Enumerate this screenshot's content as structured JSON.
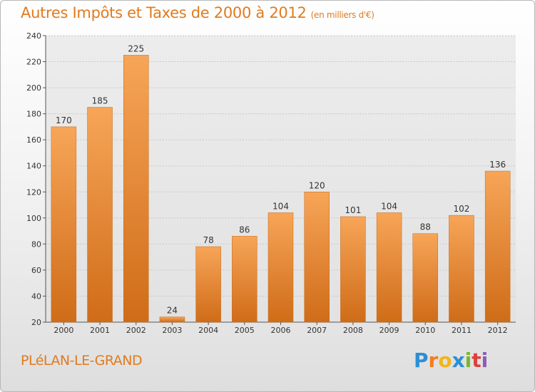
{
  "title": "Autres Impôts et Taxes de 2000 à 2012",
  "unit": "(en milliers d'€)",
  "commune": "PLéLAN-LE-GRAND",
  "logo": {
    "letters": [
      "P",
      "r",
      "o",
      "x",
      "i",
      "t",
      "i"
    ],
    "colors": [
      "#2a8fd6",
      "#f07f1e",
      "#f2b51b",
      "#2a8fd6",
      "#78b82a",
      "#e0403a",
      "#8e5bb8"
    ]
  },
  "chart_data": {
    "type": "bar",
    "categories": [
      "2000",
      "2001",
      "2002",
      "2003",
      "2004",
      "2005",
      "2006",
      "2007",
      "2008",
      "2009",
      "2010",
      "2011",
      "2012"
    ],
    "values": [
      170,
      185,
      225,
      24,
      78,
      86,
      104,
      120,
      101,
      104,
      88,
      102,
      136
    ],
    "data_labels": [
      "170",
      "185",
      "225",
      "24",
      "78",
      "86",
      "104",
      "120",
      "101",
      "104",
      "88",
      "102",
      "136"
    ],
    "title": "Autres Impôts et Taxes de 2000 à 2012",
    "xlabel": "",
    "ylabel": "",
    "ylim": [
      20,
      240
    ],
    "yticks": [
      "20",
      "40",
      "60",
      "80",
      "100",
      "120",
      "140",
      "160",
      "180",
      "200",
      "220",
      "240"
    ],
    "grid": true,
    "bar_color": "#ee8c30"
  }
}
